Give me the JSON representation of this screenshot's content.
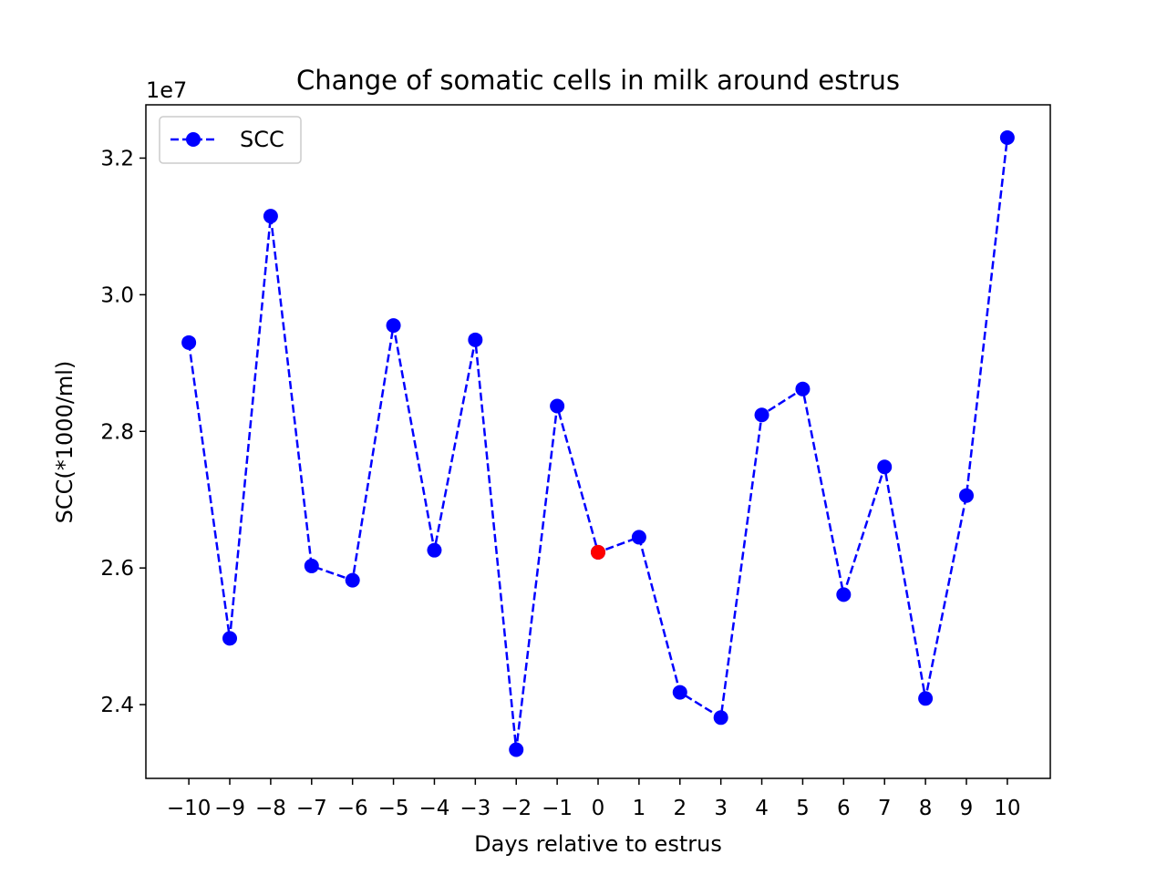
{
  "chart_data": {
    "type": "line",
    "title": "Change of somatic cells in milk around estrus",
    "xlabel": "Days relative to estrus",
    "ylabel": "SCC(*1000/ml)",
    "y_offset_label": "1e7",
    "x": [
      -10,
      -9,
      -8,
      -7,
      -6,
      -5,
      -4,
      -3,
      -2,
      -1,
      0,
      1,
      2,
      3,
      4,
      5,
      6,
      7,
      8,
      9,
      10
    ],
    "x_tick_labels": [
      "−10",
      "−9",
      "−8",
      "−7",
      "−6",
      "−5",
      "−4",
      "−3",
      "−2",
      "−1",
      "0",
      "1",
      "2",
      "3",
      "4",
      "5",
      "6",
      "7",
      "8",
      "9",
      "10"
    ],
    "y_ticks": [
      2.4,
      2.6,
      2.8,
      3.0,
      3.2
    ],
    "y_tick_labels": [
      "2.4",
      "2.6",
      "2.8",
      "3.0",
      "3.2"
    ],
    "xlim": [
      -11.05,
      11.05
    ],
    "ylim": [
      2.292,
      3.278
    ],
    "series": [
      {
        "name": "SCC",
        "values": [
          2.93,
          2.497,
          3.115,
          2.603,
          2.582,
          2.955,
          2.626,
          2.934,
          2.334,
          2.837,
          2.623,
          2.645,
          2.418,
          2.381,
          2.824,
          2.862,
          2.561,
          2.748,
          2.409,
          2.706,
          3.23
        ],
        "color": "#0000ff",
        "line_style": "dashed",
        "marker": "circle"
      }
    ],
    "highlight": {
      "x": 0,
      "value": 2.623,
      "color": "#ff0000"
    },
    "legend_position": "top-left",
    "grid": false
  }
}
